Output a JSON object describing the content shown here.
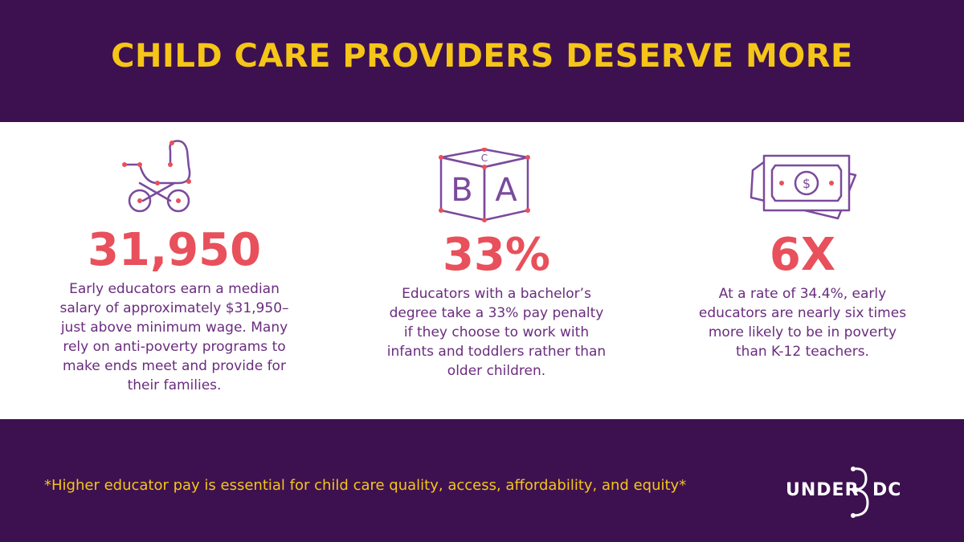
{
  "header": {
    "title": "CHILD CARE PROVIDERS DESERVE MORE"
  },
  "stats": [
    {
      "icon": "stroller-icon",
      "number": "31,950",
      "lines": [
        "Early educators earn a median",
        "salary of approximately $31,950–",
        "just above minimum wage. Many",
        "rely on anti-poverty programs to",
        "make ends meet and provide for",
        "their families."
      ]
    },
    {
      "icon": "abc-block-icon",
      "number": "33%",
      "block_letters": {
        "left": "B",
        "right": "A",
        "top": "C"
      },
      "lines": [
        "Educators with a bachelor’s",
        "degree take a 33% pay penalty",
        "if they choose to work with",
        "infants and toddlers rather than",
        "older children."
      ]
    },
    {
      "icon": "money-bill-icon",
      "number": "6X",
      "bill_symbol": "$",
      "lines": [
        "At a rate of 34.4%, early",
        "educators are nearly six times",
        "more likely to be in poverty",
        "than K-12 teachers."
      ]
    }
  ],
  "footer": {
    "tagline": "*Higher educator pay is essential for child care quality, access, affordability, and equity*"
  },
  "logo": {
    "left": "UNDER",
    "digit": "3",
    "right": "DC"
  },
  "colors": {
    "purple": "#3d1150",
    "yellow": "#f5c518",
    "coral": "#e8505b",
    "icon_purple": "#7b4a9c"
  }
}
